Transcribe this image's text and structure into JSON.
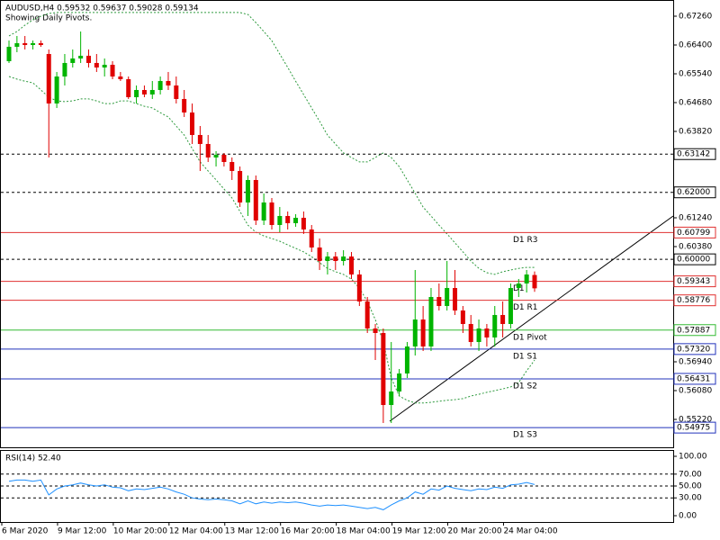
{
  "chart_data": {
    "type": "candlestick",
    "title": "AUDUSD,H4  0.59532 0.59637 0.59028 0.59134",
    "subtitle": "Showing Daily Pivots.",
    "categories": [
      "6 Mar 2020",
      null,
      null,
      null,
      null,
      null,
      null,
      "9 Mar 12:00",
      null,
      null,
      null,
      null,
      null,
      null,
      "10 Mar 20:00",
      null,
      null,
      null,
      null,
      null,
      null,
      "12 Mar 04:00",
      null,
      null,
      null,
      null,
      null,
      null,
      "13 Mar 12:00",
      null,
      null,
      null,
      null,
      null,
      null,
      "16 Mar 20:00",
      null,
      null,
      null,
      null,
      null,
      null,
      "18 Mar 04:00",
      null,
      null,
      null,
      null,
      null,
      null,
      "19 Mar 12:00",
      null,
      null,
      null,
      null,
      null,
      null,
      "20 Mar 20:00",
      null,
      null,
      null,
      null,
      null,
      null,
      "24 Mar 04:00",
      null,
      null,
      null
    ],
    "candles": [
      [
        0.65916,
        0.66534,
        0.65863,
        0.66346
      ],
      [
        0.66346,
        0.66669,
        0.66185,
        0.66454
      ],
      [
        0.66454,
        0.66669,
        0.66266,
        0.664
      ],
      [
        0.664,
        0.66534,
        0.66266,
        0.66454
      ],
      [
        0.66454,
        0.66534,
        0.66346,
        0.664
      ],
      [
        0.66131,
        0.66266,
        0.63041,
        0.64653
      ],
      [
        0.64653,
        0.65594,
        0.64519,
        0.65459
      ],
      [
        0.65459,
        0.66131,
        0.65191,
        0.65863
      ],
      [
        0.65863,
        0.66266,
        0.65728,
        0.65997
      ],
      [
        0.65997,
        0.66803,
        0.65863,
        0.66078
      ],
      [
        0.66078,
        0.66266,
        0.65728,
        0.65863
      ],
      [
        0.65863,
        0.66131,
        0.65594,
        0.65728
      ],
      [
        0.65728,
        0.65997,
        0.65459,
        0.65809
      ],
      [
        0.65809,
        0.65916,
        0.65379,
        0.65459
      ],
      [
        0.65459,
        0.65594,
        0.65325,
        0.65379
      ],
      [
        0.65379,
        0.65459,
        0.64788,
        0.64841
      ],
      [
        0.64841,
        0.65191,
        0.64653,
        0.65056
      ],
      [
        0.65056,
        0.65191,
        0.64841,
        0.64922
      ],
      [
        0.64922,
        0.65325,
        0.64788,
        0.65056
      ],
      [
        0.65056,
        0.65459,
        0.64922,
        0.65325
      ],
      [
        0.65325,
        0.65594,
        0.65056,
        0.65191
      ],
      [
        0.65191,
        0.65459,
        0.64653,
        0.64788
      ],
      [
        0.64788,
        0.65056,
        0.6425,
        0.64384
      ],
      [
        0.64384,
        0.64653,
        0.63444,
        0.63713
      ],
      [
        0.63713,
        0.63981,
        0.62638,
        0.63444
      ],
      [
        0.63444,
        0.63713,
        0.62906,
        0.63041
      ],
      [
        0.63041,
        0.63229,
        0.62772,
        0.63121
      ],
      [
        0.63121,
        0.63175,
        0.62772,
        0.62906
      ],
      [
        0.62906,
        0.63041,
        0.62369,
        0.62638
      ],
      [
        0.62638,
        0.62772,
        0.61563,
        0.61697
      ],
      [
        0.61697,
        0.62503,
        0.61294,
        0.62369
      ],
      [
        0.62369,
        0.62503,
        0.61025,
        0.61159
      ],
      [
        0.61159,
        0.61966,
        0.61025,
        0.61697
      ],
      [
        0.61697,
        0.61831,
        0.60891,
        0.61025
      ],
      [
        0.61025,
        0.61563,
        0.6081,
        0.61294
      ],
      [
        0.61294,
        0.61428,
        0.60891,
        0.61079
      ],
      [
        0.61079,
        0.61348,
        0.60971,
        0.6124
      ],
      [
        0.6124,
        0.61428,
        0.60756,
        0.60891
      ],
      [
        0.60891,
        0.61025,
        0.60219,
        0.60353
      ],
      [
        0.60353,
        0.60622,
        0.59681,
        0.5995
      ],
      [
        0.5995,
        0.60219,
        0.59547,
        0.60084
      ],
      [
        0.60084,
        0.60219,
        0.59681,
        0.5995
      ],
      [
        0.5995,
        0.60273,
        0.59816,
        0.60084
      ],
      [
        0.60084,
        0.60219,
        0.59413,
        0.59547
      ],
      [
        0.59547,
        0.59681,
        0.58606,
        0.58741
      ],
      [
        0.58741,
        0.58875,
        0.578,
        0.57934
      ],
      [
        0.57934,
        0.58069,
        0.56994,
        0.578
      ],
      [
        0.578,
        0.57934,
        0.55113,
        0.5565
      ],
      [
        0.5565,
        0.57531,
        0.55113,
        0.56053
      ],
      [
        0.56053,
        0.56725,
        0.55919,
        0.56591
      ],
      [
        0.56591,
        0.57531,
        0.56456,
        0.57397
      ],
      [
        0.57397,
        0.59681,
        0.57128,
        0.58203
      ],
      [
        0.58203,
        0.58606,
        0.57263,
        0.57397
      ],
      [
        0.57397,
        0.59144,
        0.57263,
        0.58875
      ],
      [
        0.58875,
        0.59278,
        0.58472,
        0.58606
      ],
      [
        0.58606,
        0.5995,
        0.58472,
        0.59144
      ],
      [
        0.59144,
        0.59681,
        0.58338,
        0.58472
      ],
      [
        0.58472,
        0.58606,
        0.578,
        0.58069
      ],
      [
        0.58069,
        0.58338,
        0.57397,
        0.57531
      ],
      [
        0.57531,
        0.58203,
        0.57263,
        0.57934
      ],
      [
        0.57934,
        0.58069,
        0.57397,
        0.57666
      ],
      [
        0.57666,
        0.58606,
        0.57397,
        0.58338
      ],
      [
        0.58338,
        0.58741,
        0.57666,
        0.58069
      ],
      [
        0.58069,
        0.59278,
        0.57934,
        0.59144
      ],
      [
        0.59144,
        0.59413,
        0.58875,
        0.59278
      ],
      [
        0.59278,
        0.59681,
        0.59009,
        0.59547
      ],
      [
        0.59532,
        0.59637,
        0.59028,
        0.59134
      ]
    ],
    "bull_color": "#00b400",
    "bear_color": "#e00000",
    "bands": {
      "color": "#2e9a3e",
      "upper": [
        0.6667,
        0.668,
        0.6699,
        0.6715,
        0.6726,
        0.6734,
        0.6737,
        0.6737,
        0.6737,
        0.6737,
        0.6737,
        0.6737,
        0.6737,
        0.6737,
        0.6737,
        0.6737,
        0.6737,
        0.6737,
        0.6737,
        0.6737,
        0.6737,
        0.6737,
        0.6737,
        0.6737,
        0.6737,
        0.6737,
        0.6737,
        0.6737,
        0.6737,
        0.6737,
        0.6731,
        0.6707,
        0.668,
        0.6653,
        0.6613,
        0.6573,
        0.6532,
        0.6492,
        0.6452,
        0.6412,
        0.6371,
        0.6344,
        0.6318,
        0.6304,
        0.6291,
        0.6291,
        0.6304,
        0.6318,
        0.6304,
        0.6277,
        0.6237,
        0.6197,
        0.6156,
        0.6129,
        0.6102,
        0.6076,
        0.6049,
        0.6022,
        0.5995,
        0.5973,
        0.596,
        0.5955,
        0.5963,
        0.5968,
        0.5973,
        0.5976,
        0.5976
      ],
      "lower": [
        0.6546,
        0.6538,
        0.6532,
        0.6527,
        0.6506,
        0.6484,
        0.6473,
        0.6471,
        0.6473,
        0.6479,
        0.6479,
        0.6473,
        0.6465,
        0.6465,
        0.6473,
        0.6473,
        0.6465,
        0.6457,
        0.6452,
        0.6438,
        0.6425,
        0.6398,
        0.6371,
        0.6331,
        0.6291,
        0.6264,
        0.6237,
        0.621,
        0.6183,
        0.6143,
        0.6102,
        0.6081,
        0.607,
        0.6062,
        0.6054,
        0.6043,
        0.6033,
        0.6022,
        0.6008,
        0.599,
        0.5973,
        0.5963,
        0.5955,
        0.5941,
        0.5914,
        0.5874,
        0.582,
        0.5753,
        0.5646,
        0.5592,
        0.5579,
        0.5571,
        0.5571,
        0.5573,
        0.5576,
        0.5579,
        0.5581,
        0.5584,
        0.5592,
        0.5597,
        0.5603,
        0.5608,
        0.5613,
        0.5619,
        0.5632,
        0.5667,
        0.5699
      ]
    },
    "ylim": [
      0.54387,
      0.67609
    ],
    "yticks": [
      {
        "value": 0.6726,
        "label": "0.67260"
      },
      {
        "value": 0.664,
        "label": "0.66400"
      },
      {
        "value": 0.6554,
        "label": "0.65540"
      },
      {
        "value": 0.6468,
        "label": "0.64680"
      },
      {
        "value": 0.6382,
        "label": "0.63820"
      },
      {
        "value": 0.6124,
        "label": "0.61240"
      },
      {
        "value": 0.6038,
        "label": "0.60380"
      },
      {
        "value": 0.5694,
        "label": "0.56940"
      },
      {
        "value": 0.5608,
        "label": "0.56080"
      },
      {
        "value": 0.5522,
        "label": "0.55220"
      }
    ],
    "levels": [
      {
        "value": 0.63142,
        "label": "0.63142",
        "color": "#000000",
        "dashed": true
      },
      {
        "value": 0.62,
        "label": "0.62000",
        "color": "#000000",
        "dashed": true
      },
      {
        "value": 0.60799,
        "label": "0.60799",
        "color": "#e03030",
        "name": "D1 R3"
      },
      {
        "value": 0.6,
        "label": "0.60000",
        "color": "#000000",
        "dashed": true
      },
      {
        "value": 0.59343,
        "label": "0.59343",
        "color": "#e03030",
        "name": "D1"
      },
      {
        "value": 0.58776,
        "label": "0.58776",
        "color": "#e03030",
        "name": "D1 R1"
      },
      {
        "value": 0.57887,
        "label": "0.57887",
        "color": "#33bb33",
        "name": "D1 Pivot"
      },
      {
        "value": 0.5732,
        "label": "0.57320",
        "color": "#2233bb",
        "name": "D1 S1"
      },
      {
        "value": 0.56431,
        "label": "0.56431",
        "color": "#2233bb",
        "name": "D1 S2"
      },
      {
        "value": 0.54975,
        "label": "0.54975",
        "color": "#2233bb",
        "name": "D1 S3"
      }
    ],
    "rsi": {
      "title": "RSI(14) 52.40",
      "color": "#1e90ff",
      "values": [
        58,
        60,
        60,
        58,
        60,
        35,
        45,
        50,
        52,
        55,
        52,
        50,
        52,
        48,
        47,
        42,
        45,
        44,
        46,
        48,
        45,
        40,
        36,
        30,
        28,
        27,
        28,
        27,
        25,
        20,
        25,
        20,
        23,
        21,
        23,
        22,
        23,
        21,
        18,
        16,
        18,
        17,
        18,
        16,
        14,
        12,
        14,
        10,
        18,
        25,
        30,
        40,
        36,
        45,
        43,
        50,
        46,
        44,
        42,
        45,
        44,
        48,
        46,
        52,
        53,
        56,
        52.4
      ],
      "ylim": [
        -10.6,
        107.6
      ],
      "yticks": [
        {
          "value": 100,
          "label": "100.00"
        },
        {
          "value": 70,
          "label": "70.00"
        },
        {
          "value": 50,
          "label": "50.00"
        },
        {
          "value": 30,
          "label": "30.00"
        },
        {
          "value": 0,
          "label": "0.00"
        }
      ]
    }
  }
}
